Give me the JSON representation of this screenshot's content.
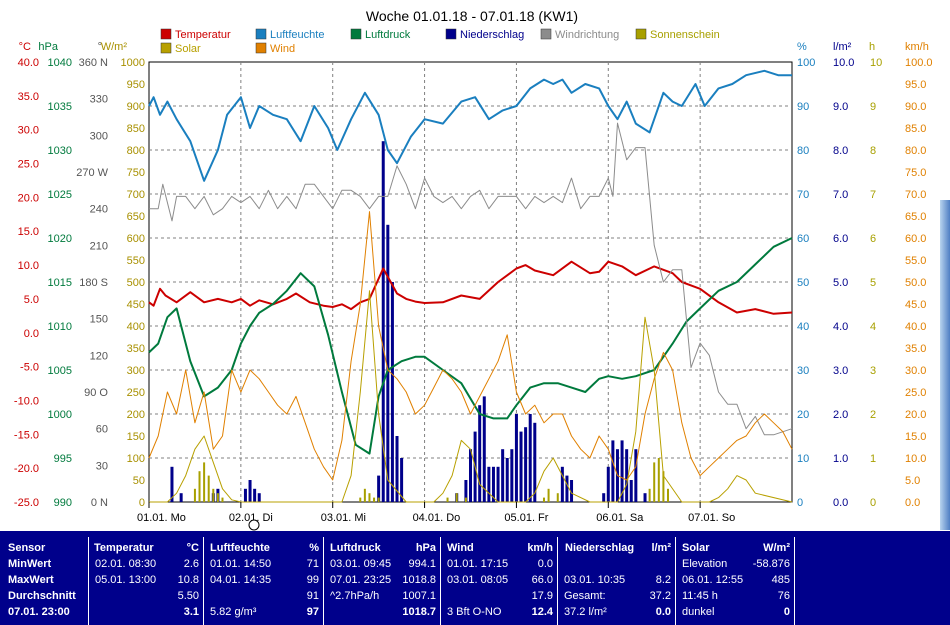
{
  "title": "Woche 01.01.18 - 07.01.18 (KW1)",
  "legend": [
    {
      "label": "Temperatur",
      "color": "#cc0000"
    },
    {
      "label": "Luftfeuchte",
      "color": "#1a7fbf"
    },
    {
      "label": "Luftdruck",
      "color": "#007a3d"
    },
    {
      "label": "Niederschlag",
      "color": "#00008b"
    },
    {
      "label": "Windrichtung",
      "color": "#8c8c8c"
    },
    {
      "label": "Sonnenschein",
      "color": "#a8a000"
    },
    {
      "label": "Solar",
      "color": "#b8a000"
    },
    {
      "label": "Wind",
      "color": "#e08000"
    }
  ],
  "axes": {
    "temp": {
      "unit": "°C",
      "color": "#cc0000",
      "ticks": [
        "40.0",
        "35.0",
        "30.0",
        "25.0",
        "20.0",
        "15.0",
        "10.0",
        "5.0",
        "0.0",
        "-5.0",
        "-10.0",
        "-15.0",
        "-20.0",
        "-25.0"
      ]
    },
    "pressure": {
      "unit": "hPa",
      "color": "#007a3d",
      "ticks": [
        "1040",
        "1035",
        "1030",
        "1025",
        "1020",
        "1015",
        "1010",
        "1005",
        "1000",
        "995",
        "990"
      ]
    },
    "direction": {
      "unit": "°",
      "color": "#555555",
      "ticks": [
        "360 N",
        "330",
        "300",
        "270 W",
        "240",
        "210",
        "180 S",
        "150",
        "120",
        "90 O",
        "60",
        "30",
        "0 N"
      ]
    },
    "solar": {
      "unit": "W/m²",
      "color": "#a89000",
      "ticks": [
        "1000",
        "950",
        "900",
        "850",
        "800",
        "750",
        "700",
        "650",
        "600",
        "550",
        "500",
        "450",
        "400",
        "350",
        "300",
        "250",
        "200",
        "150",
        "100",
        "50",
        "0"
      ]
    },
    "humidity": {
      "unit": "%",
      "color": "#1a7fbf",
      "ticks": [
        "100",
        "90",
        "80",
        "70",
        "60",
        "50",
        "40",
        "30",
        "20",
        "10",
        "0"
      ]
    },
    "rain": {
      "unit": "l/m²",
      "color": "#00008b",
      "ticks": [
        "10.0",
        "9.0",
        "8.0",
        "7.0",
        "6.0",
        "5.0",
        "4.0",
        "3.0",
        "2.0",
        "1.0",
        "0.0"
      ]
    },
    "hours": {
      "unit": "h",
      "color": "#a8a000",
      "ticks": [
        "10",
        "9",
        "8",
        "7",
        "6",
        "5",
        "4",
        "3",
        "2",
        "1",
        "0"
      ]
    },
    "wind": {
      "unit": "km/h",
      "color": "#e08000",
      "ticks": [
        "100.0",
        "95.0",
        "90.0",
        "85.0",
        "80.0",
        "75.0",
        "70.0",
        "65.0",
        "60.0",
        "55.0",
        "50.0",
        "45.0",
        "40.0",
        "35.0",
        "30.0",
        "25.0",
        "20.0",
        "15.0",
        "10.0",
        "5.0",
        "0.0"
      ]
    }
  },
  "x_labels": [
    "01.01. Mo",
    "02.01. Di",
    "03.01. Mi",
    "04.01. Do",
    "05.01. Fr",
    "06.01. Sa",
    "07.01. So"
  ],
  "chart_data": {
    "type": "line",
    "title": "Woche 01.01.18 - 07.01.18 (KW1)",
    "x_unit": "days",
    "xlim": [
      0,
      7
    ],
    "series": [
      {
        "name": "Temperatur",
        "axis": "temp",
        "ylim": [
          -25,
          40
        ],
        "x": [
          0,
          0.05,
          0.12,
          0.18,
          0.3,
          0.45,
          0.6,
          0.75,
          0.9,
          1.0,
          1.1,
          1.2,
          1.35,
          1.5,
          1.6,
          1.75,
          1.9,
          2.0,
          2.1,
          2.2,
          2.3,
          2.4,
          2.55,
          2.7,
          2.8,
          2.9,
          3.0,
          3.2,
          3.4,
          3.6,
          3.8,
          4.0,
          4.1,
          4.2,
          4.4,
          4.6,
          4.8,
          4.9,
          5.0,
          5.15,
          5.3,
          5.5,
          5.7,
          5.8,
          5.9,
          6.0,
          6.2,
          6.4,
          6.6,
          6.8,
          7.0
        ],
        "y": [
          4.5,
          4.0,
          6.5,
          5.5,
          4.5,
          6.0,
          4.5,
          5.0,
          4.5,
          5.0,
          4.0,
          4.8,
          4.2,
          5.0,
          5.8,
          4.5,
          4.0,
          3.8,
          4.2,
          3.5,
          4.5,
          5.0,
          9.5,
          5.8,
          5.0,
          4.6,
          4.4,
          4.5,
          5.5,
          5.0,
          7.5,
          9.5,
          10.0,
          9.2,
          8.5,
          10.5,
          8.8,
          9.0,
          10.5,
          9.8,
          8.5,
          9.8,
          8.8,
          7.5,
          7.0,
          6.5,
          4.5,
          3.0,
          3.5,
          2.8,
          3.0
        ]
      },
      {
        "name": "Luftfeuchte",
        "axis": "humidity",
        "ylim": [
          0,
          100
        ],
        "x": [
          0,
          0.05,
          0.12,
          0.2,
          0.3,
          0.45,
          0.6,
          0.75,
          0.85,
          1.0,
          1.1,
          1.2,
          1.35,
          1.5,
          1.65,
          1.8,
          1.95,
          2.05,
          2.2,
          2.35,
          2.5,
          2.6,
          2.7,
          2.85,
          3.0,
          3.2,
          3.4,
          3.55,
          3.7,
          3.85,
          4.0,
          4.15,
          4.3,
          4.4,
          4.5,
          4.6,
          4.75,
          4.9,
          5.0,
          5.1,
          5.2,
          5.3,
          5.45,
          5.6,
          5.7,
          5.8,
          5.95,
          6.05,
          6.2,
          6.35,
          6.5,
          6.7,
          6.85,
          7.0
        ],
        "y": [
          90,
          92,
          88,
          91,
          87,
          82,
          73,
          80,
          88,
          92,
          85,
          90,
          88,
          87,
          82,
          90,
          85,
          80,
          87,
          93,
          88,
          80,
          77,
          83,
          87,
          86,
          91,
          92,
          87,
          89,
          90,
          94,
          96,
          95,
          96,
          93,
          95,
          94,
          90,
          87,
          91,
          86,
          84,
          93,
          91,
          90,
          95,
          90,
          94,
          95,
          97,
          98,
          97,
          97
        ]
      },
      {
        "name": "Luftdruck",
        "axis": "pressure",
        "ylim": [
          990,
          1040
        ],
        "x": [
          0,
          0.1,
          0.2,
          0.3,
          0.45,
          0.6,
          0.75,
          0.9,
          1.0,
          1.1,
          1.2,
          1.35,
          1.5,
          1.65,
          1.8,
          1.95,
          2.1,
          2.25,
          2.4,
          2.5,
          2.6,
          2.75,
          2.9,
          3.0,
          3.2,
          3.4,
          3.6,
          3.75,
          3.9,
          4.0,
          4.15,
          4.3,
          4.45,
          4.6,
          4.75,
          4.9,
          5.0,
          5.15,
          5.3,
          5.5,
          5.7,
          5.85,
          6.0,
          6.2,
          6.4,
          6.6,
          6.8,
          7.0
        ],
        "y": [
          1007,
          1008,
          1011,
          1012,
          1006,
          1002,
          1003,
          1005,
          1008,
          1010,
          1011.5,
          1012.5,
          1014,
          1016,
          1014.5,
          1009,
          1002.5,
          996.5,
          995.5,
          1002,
          1005,
          1006,
          1006.5,
          1006.5,
          1005,
          1003.5,
          1000,
          999.5,
          999.5,
          1001,
          1003,
          1003.5,
          1003.5,
          1003,
          1002.5,
          1004,
          1004.3,
          1004,
          1004.3,
          1005,
          1008,
          1010.5,
          1012,
          1014,
          1015,
          1017,
          1019,
          1020
        ]
      },
      {
        "name": "Windrichtung",
        "axis": "direction",
        "ylim": [
          0,
          360
        ],
        "x": [
          0,
          0.1,
          0.15,
          0.25,
          0.3,
          0.4,
          0.5,
          0.6,
          0.7,
          0.8,
          0.9,
          1.0,
          1.1,
          1.2,
          1.3,
          1.4,
          1.5,
          1.6,
          1.7,
          1.8,
          1.9,
          2.0,
          2.1,
          2.2,
          2.3,
          2.4,
          2.5,
          2.6,
          2.7,
          2.8,
          2.9,
          3.0,
          3.1,
          3.2,
          3.3,
          3.4,
          3.5,
          3.6,
          3.7,
          3.8,
          3.9,
          4.0,
          4.1,
          4.2,
          4.3,
          4.4,
          4.5,
          4.6,
          4.7,
          4.8,
          4.9,
          5.0,
          5.05,
          5.1,
          5.2,
          5.3,
          5.4,
          5.45,
          5.5,
          5.6,
          5.7,
          5.8,
          5.9,
          6.0,
          6.1,
          6.2,
          6.3,
          6.4,
          6.5,
          6.6,
          6.7,
          6.8,
          7.0
        ],
        "y": [
          240,
          240,
          260,
          230,
          250,
          250,
          240,
          250,
          235,
          240,
          250,
          245,
          250,
          240,
          255,
          240,
          250,
          240,
          260,
          260,
          250,
          240,
          255,
          255,
          250,
          240,
          250,
          250,
          275,
          260,
          240,
          265,
          250,
          245,
          250,
          240,
          250,
          255,
          240,
          250,
          250,
          250,
          240,
          250,
          245,
          250,
          245,
          265,
          240,
          250,
          250,
          265,
          250,
          310,
          280,
          290,
          290,
          250,
          210,
          180,
          190,
          190,
          110,
          130,
          120,
          90,
          80,
          80,
          60,
          70,
          55,
          55,
          60
        ]
      },
      {
        "name": "Wind",
        "axis": "wind",
        "ylim": [
          0,
          100
        ],
        "x": [
          0,
          0.1,
          0.2,
          0.3,
          0.4,
          0.5,
          0.6,
          0.7,
          0.8,
          0.9,
          1.0,
          1.1,
          1.2,
          1.3,
          1.4,
          1.5,
          1.6,
          1.7,
          1.8,
          1.9,
          2.0,
          2.1,
          2.2,
          2.3,
          2.4,
          2.5,
          2.6,
          2.7,
          2.8,
          2.9,
          3.0,
          3.1,
          3.2,
          3.3,
          3.4,
          3.5,
          3.6,
          3.7,
          3.8,
          3.9,
          4.0,
          4.1,
          4.2,
          4.3,
          4.4,
          4.5,
          4.6,
          4.7,
          4.8,
          4.9,
          5.0,
          5.1,
          5.2,
          5.3,
          5.4,
          5.5,
          5.6,
          5.7,
          5.8,
          5.9,
          6.0,
          6.1,
          6.2,
          6.3,
          6.4,
          6.5,
          6.6,
          6.7,
          6.8,
          6.9,
          7.0
        ],
        "y": [
          10,
          15,
          25,
          20,
          30,
          18,
          25,
          12,
          15,
          30,
          25,
          30,
          28,
          25,
          22,
          20,
          24,
          18,
          12,
          8,
          5,
          14,
          32,
          45,
          66,
          40,
          30,
          28,
          25,
          20,
          22,
          26,
          30,
          28,
          25,
          20,
          24,
          28,
          32,
          38,
          25,
          20,
          22,
          18,
          20,
          20,
          15,
          12,
          10,
          15,
          12,
          6,
          5,
          8,
          20,
          28,
          34,
          30,
          18,
          10,
          6,
          8,
          10,
          12,
          14,
          15,
          18,
          20,
          18,
          16,
          12
        ]
      },
      {
        "name": "Solar",
        "axis": "solar",
        "ylim": [
          0,
          1000
        ],
        "x": [
          0,
          0.2,
          0.3,
          0.4,
          0.5,
          0.6,
          0.7,
          0.8,
          0.9,
          1.0,
          1.8,
          2.1,
          2.2,
          2.3,
          2.4,
          2.5,
          2.6,
          2.8,
          3.1,
          3.2,
          3.3,
          3.4,
          3.5,
          3.6,
          3.8,
          4.1,
          4.2,
          4.3,
          4.4,
          4.5,
          4.6,
          4.8,
          5.1,
          5.2,
          5.3,
          5.4,
          5.5,
          5.6,
          5.8,
          6.1,
          6.2,
          6.3,
          6.4,
          6.5,
          6.6,
          7.0
        ],
        "y": [
          0,
          0,
          20,
          60,
          120,
          150,
          90,
          30,
          5,
          0,
          0,
          0,
          60,
          250,
          480,
          200,
          50,
          0,
          0,
          20,
          60,
          140,
          120,
          40,
          0,
          0,
          20,
          70,
          100,
          60,
          20,
          0,
          0,
          40,
          160,
          420,
          300,
          60,
          0,
          0,
          10,
          30,
          60,
          50,
          20,
          0
        ]
      }
    ],
    "bars": [
      {
        "name": "Niederschlag",
        "axis": "rain",
        "ylim": [
          0,
          10
        ],
        "x": [
          0.25,
          0.35,
          0.7,
          0.75,
          1.05,
          1.1,
          1.15,
          1.2,
          2.5,
          2.55,
          2.6,
          2.65,
          2.7,
          2.75,
          3.35,
          3.45,
          3.5,
          3.55,
          3.6,
          3.65,
          3.7,
          3.75,
          3.8,
          3.85,
          3.9,
          3.95,
          4.0,
          4.05,
          4.1,
          4.15,
          4.2,
          4.5,
          4.55,
          4.6,
          4.95,
          5.0,
          5.05,
          5.1,
          5.15,
          5.2,
          5.25,
          5.3,
          5.4
        ],
        "y": [
          0.8,
          0.2,
          0.2,
          0.3,
          0.3,
          0.5,
          0.3,
          0.2,
          0.6,
          8.2,
          6.3,
          5.0,
          1.5,
          1.0,
          0.2,
          0.5,
          1.2,
          1.6,
          2.2,
          2.4,
          0.8,
          0.8,
          0.8,
          1.2,
          1.0,
          1.2,
          2.0,
          1.6,
          1.7,
          2.0,
          1.8,
          0.8,
          0.6,
          0.5,
          0.2,
          0.8,
          1.4,
          1.2,
          1.4,
          1.2,
          0.5,
          1.2,
          0.2
        ]
      },
      {
        "name": "Sonnenschein",
        "axis": "hours",
        "ylim": [
          0,
          10
        ],
        "x": [
          0.5,
          0.55,
          0.6,
          0.65,
          0.7,
          0.75,
          0.8,
          2.3,
          2.35,
          2.4,
          2.45,
          2.5,
          3.25,
          3.35,
          3.45,
          4.3,
          4.35,
          4.45,
          5.45,
          5.5,
          5.55,
          5.6,
          5.65
        ],
        "y": [
          0.3,
          0.7,
          0.9,
          0.6,
          0.3,
          0.2,
          0.1,
          0.1,
          0.3,
          0.2,
          0.1,
          0.1,
          0.1,
          0.2,
          0.1,
          0.1,
          0.3,
          0.2,
          0.3,
          0.9,
          1.0,
          0.7,
          0.3
        ]
      }
    ]
  },
  "stats": {
    "sensor": {
      "header": "Sensor",
      "rows": [
        "MinWert",
        "MaxWert",
        "Durchschnitt",
        "07.01. 23:00"
      ]
    },
    "temperatur": {
      "header": "Temperatur",
      "unit": "°C",
      "lines": [
        [
          "02.01.  08:30",
          "2.6"
        ],
        [
          "05.01.  13:00",
          "10.8"
        ],
        [
          "",
          "5.50"
        ],
        [
          "",
          "3.1"
        ]
      ]
    },
    "luftfeuchte": {
      "header": "Luftfeuchte",
      "unit": "%",
      "lines": [
        [
          "01.01.  14:50",
          "71"
        ],
        [
          "04.01.  14:35",
          "99"
        ],
        [
          "",
          "91"
        ],
        [
          "5.82 g/m³",
          "97"
        ]
      ]
    },
    "luftdruck": {
      "header": "Luftdruck",
      "unit": "hPa",
      "lines": [
        [
          "03.01.  09:45",
          "994.1"
        ],
        [
          "07.01.  23:25",
          "1018.8"
        ],
        [
          "^2.7hPa/h",
          "1007.1"
        ],
        [
          "",
          "1018.7"
        ]
      ]
    },
    "wind": {
      "header": "Wind",
      "unit": "km/h",
      "lines": [
        [
          "01.01.  17:15",
          "0.0"
        ],
        [
          "03.01.  08:05",
          "66.0"
        ],
        [
          "",
          "17.9"
        ],
        [
          "3 Bft O-NO",
          "12.4"
        ]
      ]
    },
    "niederschlag": {
      "header": "Niederschlag",
      "unit": "l/m²",
      "lines": [
        [
          "",
          ""
        ],
        [
          "03.01.  10:35",
          "8.2"
        ],
        [
          "Gesamt:",
          "37.2"
        ],
        [
          "37.2 l/m²",
          "0.0"
        ]
      ]
    },
    "solar": {
      "header": "Solar",
      "unit": "W/m²",
      "lines": [
        [
          "Elevation",
          "-58.876"
        ],
        [
          "06.01.  12:55",
          "485"
        ],
        [
          "11:45 h",
          "76"
        ],
        [
          "dunkel",
          "0"
        ]
      ]
    }
  }
}
